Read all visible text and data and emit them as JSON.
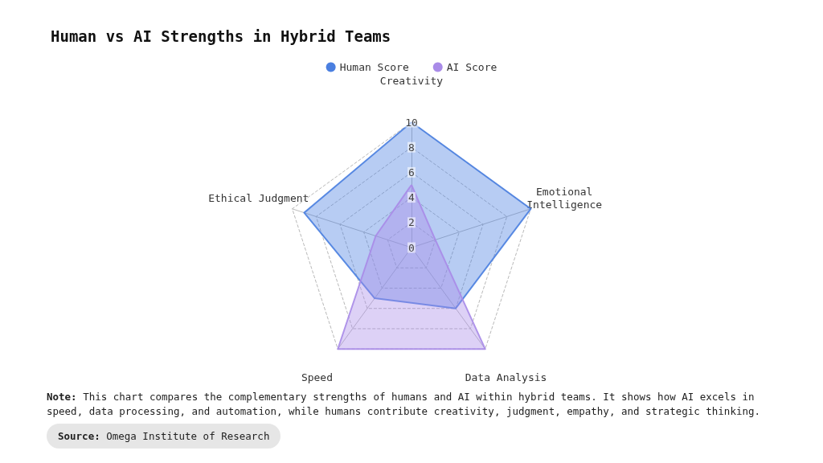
{
  "chart_data": {
    "type": "radar",
    "title": "Human vs AI Strengths in Hybrid Teams",
    "categories": [
      "Creativity",
      "Emotional Intelligence",
      "Data Analysis",
      "Speed",
      "Ethical Judgment"
    ],
    "series": [
      {
        "name": "Human Score",
        "color": "#4a7fe0",
        "values": [
          10,
          10,
          6,
          5,
          9
        ]
      },
      {
        "name": "AI Score",
        "color": "#a98be8",
        "values": [
          5,
          2,
          10,
          10,
          3
        ]
      }
    ],
    "ylim": [
      0,
      10
    ],
    "yticks": [
      0,
      2,
      4,
      6,
      8,
      10
    ],
    "legend": "top",
    "grid": true,
    "annotations": [
      "Note: This chart compares the complementary strengths of humans and AI within hybrid teams. It shows how AI excels in speed, data processing, and automation, while humans contribute creativity, judgment, empathy, and strategic thinking.",
      "Source: Omega Institute of Research"
    ]
  }
}
